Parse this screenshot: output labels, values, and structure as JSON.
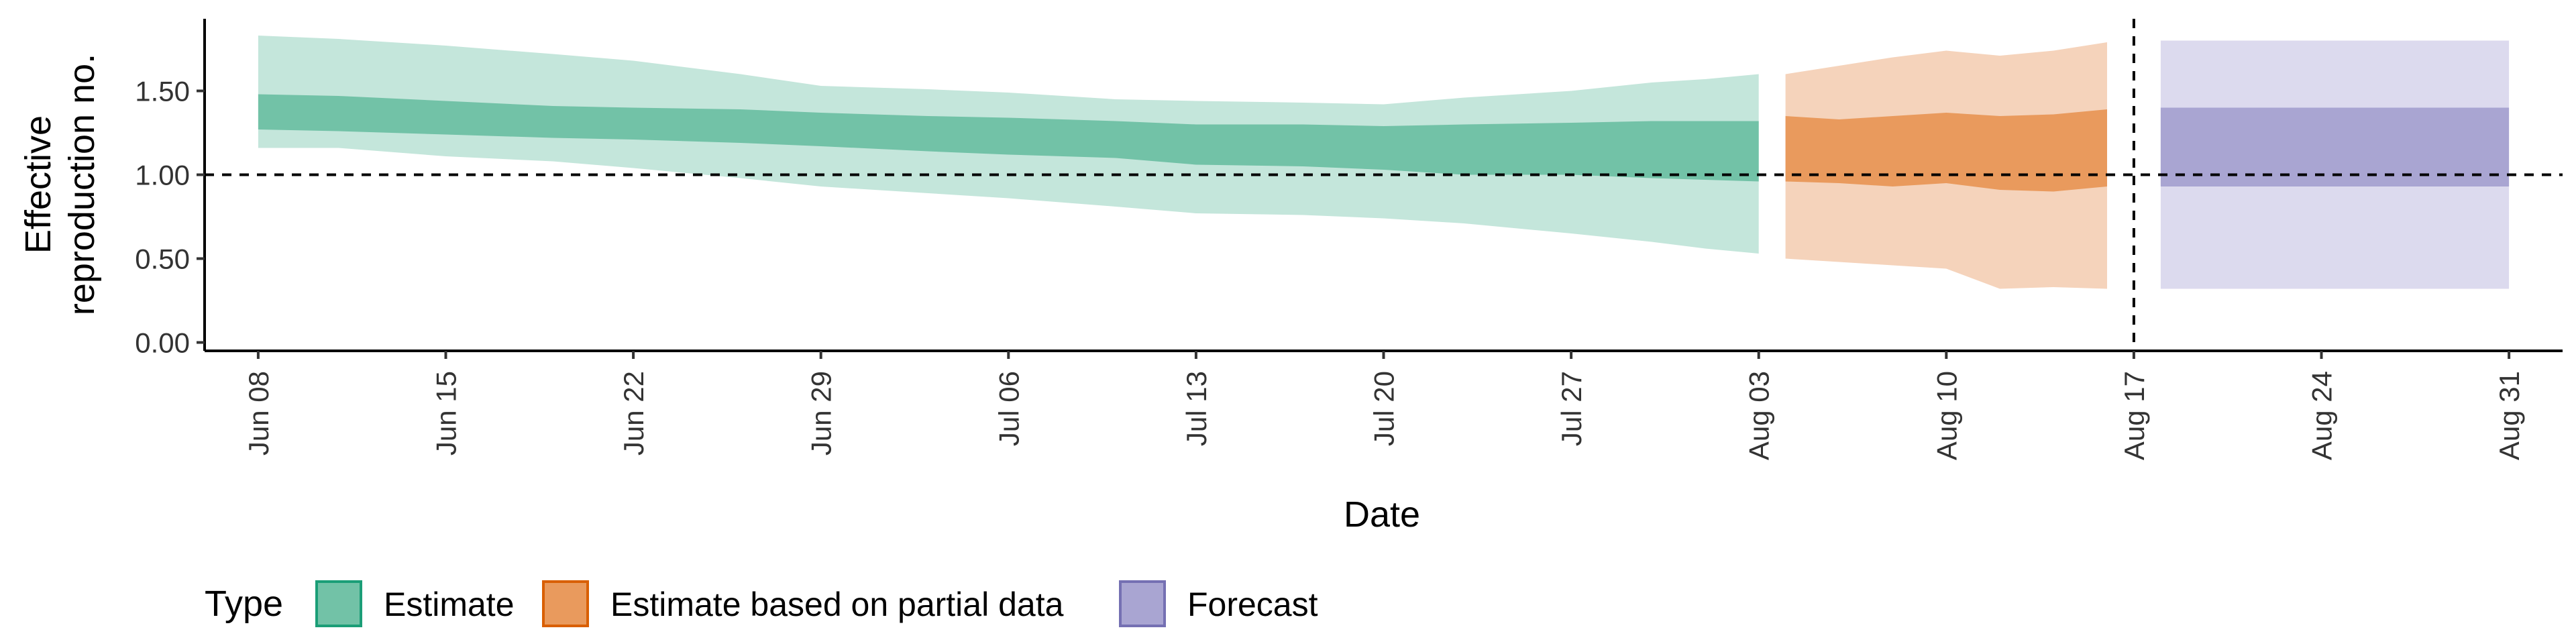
{
  "chart_data": {
    "type": "area",
    "title": "",
    "xlabel": "Date",
    "ylabel_lines": [
      "Effective",
      "reproduction no."
    ],
    "xlim": [
      "2020-06-06",
      "2020-09-02"
    ],
    "ylim": [
      -0.05,
      1.93
    ],
    "x_ticks": [
      {
        "date": "2020-06-08",
        "label": "Jun 08"
      },
      {
        "date": "2020-06-15",
        "label": "Jun 15"
      },
      {
        "date": "2020-06-22",
        "label": "Jun 22"
      },
      {
        "date": "2020-06-29",
        "label": "Jun 29"
      },
      {
        "date": "2020-07-06",
        "label": "Jul 06"
      },
      {
        "date": "2020-07-13",
        "label": "Jul 13"
      },
      {
        "date": "2020-07-20",
        "label": "Jul 20"
      },
      {
        "date": "2020-07-27",
        "label": "Jul 27"
      },
      {
        "date": "2020-08-03",
        "label": "Aug 03"
      },
      {
        "date": "2020-08-10",
        "label": "Aug 10"
      },
      {
        "date": "2020-08-17",
        "label": "Aug 17"
      },
      {
        "date": "2020-08-24",
        "label": "Aug 24"
      },
      {
        "date": "2020-08-31",
        "label": "Aug 31"
      }
    ],
    "y_ticks": [
      {
        "value": 0.0,
        "label": "0.00"
      },
      {
        "value": 0.5,
        "label": "0.50"
      },
      {
        "value": 1.0,
        "label": "1.00"
      },
      {
        "value": 1.5,
        "label": "1.50"
      }
    ],
    "reference_hline": 1.0,
    "reference_vline": "2020-08-17",
    "grid": false,
    "legend": {
      "title": "Type",
      "position": "bottom-left",
      "entries": [
        {
          "label": "Estimate",
          "fill": "#72c2a7",
          "border": "#1b9e77"
        },
        {
          "label": "Estimate based on partial data",
          "fill": "#e99a5d",
          "border": "#d95f02"
        },
        {
          "label": "Forecast",
          "fill": "#a9a5d2",
          "border": "#7570b3"
        }
      ]
    },
    "series": [
      {
        "name": "Estimate",
        "outer_color": "#c4e6db",
        "inner_color": "#72c2a7",
        "bands": [
          {
            "date": "2020-06-08",
            "lo90": 1.16,
            "lo50": 1.27,
            "hi50": 1.48,
            "hi90": 1.83
          },
          {
            "date": "2020-06-11",
            "lo90": 1.16,
            "lo50": 1.26,
            "hi50": 1.47,
            "hi90": 1.81
          },
          {
            "date": "2020-06-15",
            "lo90": 1.11,
            "lo50": 1.24,
            "hi50": 1.44,
            "hi90": 1.77
          },
          {
            "date": "2020-06-19",
            "lo90": 1.08,
            "lo50": 1.22,
            "hi50": 1.41,
            "hi90": 1.72
          },
          {
            "date": "2020-06-22",
            "lo90": 1.04,
            "lo50": 1.21,
            "hi50": 1.4,
            "hi90": 1.68
          },
          {
            "date": "2020-06-26",
            "lo90": 0.98,
            "lo50": 1.19,
            "hi50": 1.39,
            "hi90": 1.6
          },
          {
            "date": "2020-06-29",
            "lo90": 0.93,
            "lo50": 1.17,
            "hi50": 1.37,
            "hi90": 1.53
          },
          {
            "date": "2020-07-03",
            "lo90": 0.89,
            "lo50": 1.14,
            "hi50": 1.35,
            "hi90": 1.51
          },
          {
            "date": "2020-07-06",
            "lo90": 0.86,
            "lo50": 1.12,
            "hi50": 1.34,
            "hi90": 1.49
          },
          {
            "date": "2020-07-10",
            "lo90": 0.81,
            "lo50": 1.1,
            "hi50": 1.32,
            "hi90": 1.45
          },
          {
            "date": "2020-07-13",
            "lo90": 0.77,
            "lo50": 1.06,
            "hi50": 1.3,
            "hi90": 1.44
          },
          {
            "date": "2020-07-17",
            "lo90": 0.76,
            "lo50": 1.05,
            "hi50": 1.3,
            "hi90": 1.43
          },
          {
            "date": "2020-07-20",
            "lo90": 0.74,
            "lo50": 1.03,
            "hi50": 1.29,
            "hi90": 1.42
          },
          {
            "date": "2020-07-23",
            "lo90": 0.71,
            "lo50": 1.0,
            "hi50": 1.3,
            "hi90": 1.46
          },
          {
            "date": "2020-07-27",
            "lo90": 0.65,
            "lo50": 1.0,
            "hi50": 1.31,
            "hi90": 1.5
          },
          {
            "date": "2020-07-30",
            "lo90": 0.6,
            "lo50": 0.98,
            "hi50": 1.32,
            "hi90": 1.55
          },
          {
            "date": "2020-08-01",
            "lo90": 0.56,
            "lo50": 0.97,
            "hi50": 1.32,
            "hi90": 1.57
          },
          {
            "date": "2020-08-03",
            "lo90": 0.53,
            "lo50": 0.96,
            "hi50": 1.32,
            "hi90": 1.6
          }
        ]
      },
      {
        "name": "Estimate based on partial data",
        "outer_color": "#f5d3bb",
        "inner_color": "#e99a5d",
        "bands": [
          {
            "date": "2020-08-04",
            "lo90": 0.5,
            "lo50": 0.96,
            "hi50": 1.35,
            "hi90": 1.6
          },
          {
            "date": "2020-08-06",
            "lo90": 0.48,
            "lo50": 0.95,
            "hi50": 1.33,
            "hi90": 1.65
          },
          {
            "date": "2020-08-08",
            "lo90": 0.46,
            "lo50": 0.93,
            "hi50": 1.35,
            "hi90": 1.7
          },
          {
            "date": "2020-08-10",
            "lo90": 0.44,
            "lo50": 0.95,
            "hi50": 1.37,
            "hi90": 1.74
          },
          {
            "date": "2020-08-12",
            "lo90": 0.32,
            "lo50": 0.91,
            "hi50": 1.35,
            "hi90": 1.71
          },
          {
            "date": "2020-08-14",
            "lo90": 0.33,
            "lo50": 0.9,
            "hi50": 1.36,
            "hi90": 1.74
          },
          {
            "date": "2020-08-16",
            "lo90": 0.32,
            "lo50": 0.93,
            "hi50": 1.39,
            "hi90": 1.79
          }
        ]
      },
      {
        "name": "Forecast",
        "outer_color": "#dcdaee",
        "inner_color": "#a9a5d2",
        "bands": [
          {
            "date": "2020-08-18",
            "lo90": 0.32,
            "lo50": 0.93,
            "hi50": 1.4,
            "hi90": 1.8
          },
          {
            "date": "2020-08-31",
            "lo90": 0.32,
            "lo50": 0.93,
            "hi50": 1.4,
            "hi90": 1.8
          }
        ]
      }
    ]
  }
}
